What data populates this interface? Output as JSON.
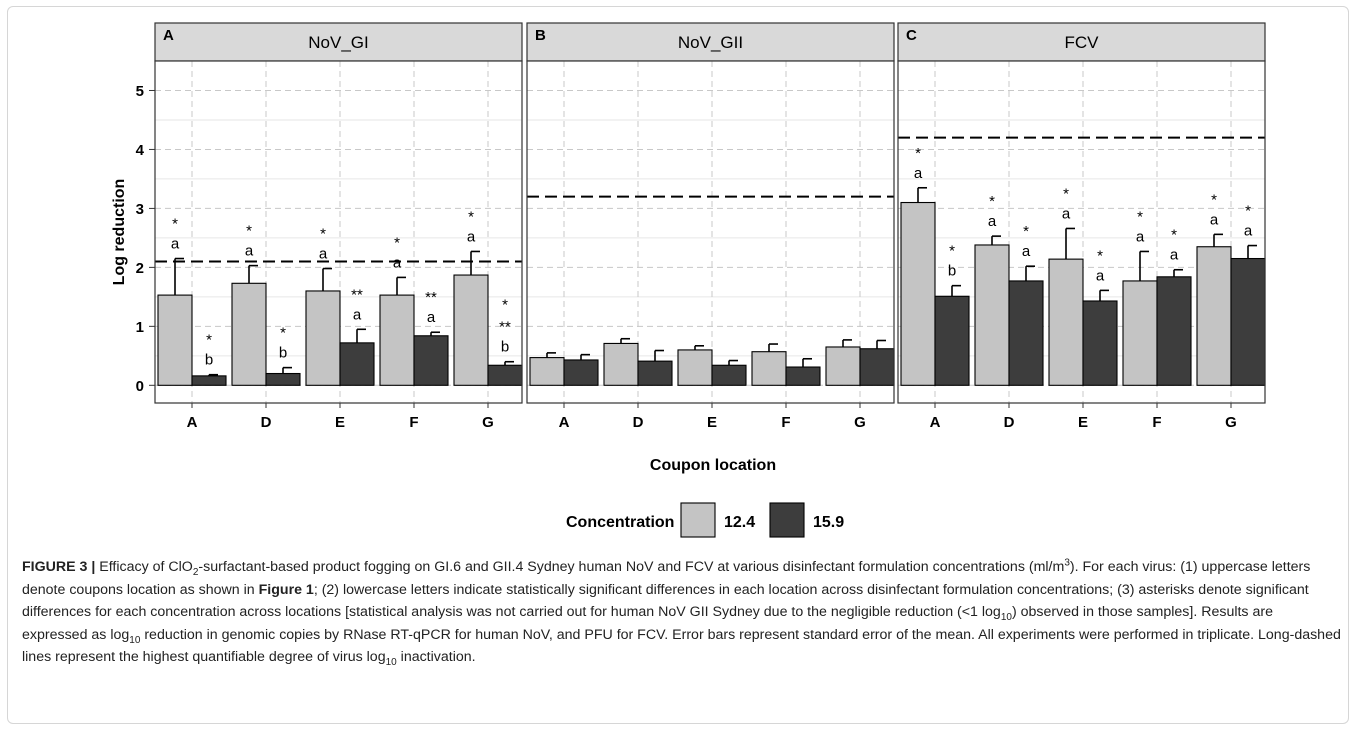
{
  "chart_data": {
    "type": "bar",
    "xlabel": "Coupon location",
    "ylabel": "Log reduction",
    "ylim": [
      -0.3,
      5.5
    ],
    "yticks": [
      0,
      1,
      2,
      3,
      4,
      5
    ],
    "grid": true,
    "categories": [
      "A",
      "D",
      "E",
      "F",
      "G"
    ],
    "legend": {
      "title": "Concentration",
      "position": "bottom",
      "entries": [
        {
          "name": "12.4",
          "color": "#c4c4c4"
        },
        {
          "name": "15.9",
          "color": "#3d3d3d"
        }
      ]
    },
    "panels": [
      {
        "letter": "A",
        "title": "NoV_GI",
        "limit_line": 2.1,
        "series": [
          {
            "name": "12.4",
            "values": [
              1.53,
              1.73,
              1.6,
              1.53,
              1.87
            ],
            "errors": [
              0.62,
              0.3,
              0.38,
              0.3,
              0.4
            ],
            "annotations": [
              [
                "*",
                "a"
              ],
              [
                "*",
                "a"
              ],
              [
                "*",
                "a"
              ],
              [
                "*",
                "a"
              ],
              [
                "*",
                "a"
              ]
            ]
          },
          {
            "name": "15.9",
            "values": [
              0.16,
              0.2,
              0.72,
              0.84,
              0.34
            ],
            "errors": [
              0.02,
              0.1,
              0.23,
              0.06,
              0.06
            ],
            "annotations": [
              [
                "*",
                "b"
              ],
              [
                "*",
                "b"
              ],
              [
                "**",
                "a"
              ],
              [
                "**",
                "a"
              ],
              [
                "*",
                "**",
                "b"
              ]
            ]
          }
        ]
      },
      {
        "letter": "B",
        "title": "NoV_GII",
        "limit_line": 3.2,
        "series": [
          {
            "name": "12.4",
            "values": [
              0.47,
              0.71,
              0.6,
              0.57,
              0.65
            ],
            "errors": [
              0.08,
              0.08,
              0.07,
              0.13,
              0.12
            ],
            "annotations": [
              [],
              [],
              [],
              [],
              []
            ]
          },
          {
            "name": "15.9",
            "values": [
              0.43,
              0.41,
              0.34,
              0.31,
              0.62
            ],
            "errors": [
              0.09,
              0.18,
              0.08,
              0.14,
              0.14
            ],
            "annotations": [
              [],
              [],
              [],
              [],
              []
            ]
          }
        ]
      },
      {
        "letter": "C",
        "title": "FCV",
        "limit_line": 4.2,
        "series": [
          {
            "name": "12.4",
            "values": [
              3.1,
              2.38,
              2.14,
              1.77,
              2.35
            ],
            "errors": [
              0.25,
              0.15,
              0.52,
              0.5,
              0.21
            ],
            "annotations": [
              [
                "*",
                "a"
              ],
              [
                "*",
                "a"
              ],
              [
                "*",
                "a"
              ],
              [
                "*",
                "a"
              ],
              [
                "*",
                "a"
              ]
            ]
          },
          {
            "name": "15.9",
            "values": [
              1.51,
              1.77,
              1.43,
              1.84,
              2.15
            ],
            "errors": [
              0.18,
              0.25,
              0.18,
              0.12,
              0.22
            ],
            "annotations": [
              [
                "*",
                "b"
              ],
              [
                "*",
                "a"
              ],
              [
                "*",
                "a"
              ],
              [
                "*",
                "a"
              ],
              [
                "*",
                "a"
              ]
            ]
          }
        ]
      }
    ]
  },
  "caption": {
    "label": "FIGURE 3 |",
    "t1": " Efficacy of ClO",
    "t1_sub": "2",
    "t2": "-surfactant-based product fogging on GI.6 and GII.4 Sydney human NoV and FCV at various disinfectant formulation concentrations (ml/m",
    "t2_sup": "3",
    "t3": "). For each virus: (1) uppercase letters denote coupons location as shown in ",
    "ref": "Figure 1",
    "t4": "; (2) lowercase letters indicate statistically significant differences in each location across disinfectant formulation concentrations; (3) asterisks denote significant differences for each concentration across locations [statistical analysis was not carried out for human NoV GII Sydney due to the negligible reduction (<1 log",
    "t4_sub": "10",
    "t5": ") observed in those samples]. Results are expressed as log",
    "t5_sub": "10",
    "t6": " reduction in genomic copies by RNase RT-qPCR for human NoV, and PFU for FCV. Error bars represent standard error of the mean. All experiments were performed in triplicate. Long-dashed lines represent the highest quantifiable degree of virus log",
    "t6_sub": "10",
    "t7": " inactivation."
  }
}
